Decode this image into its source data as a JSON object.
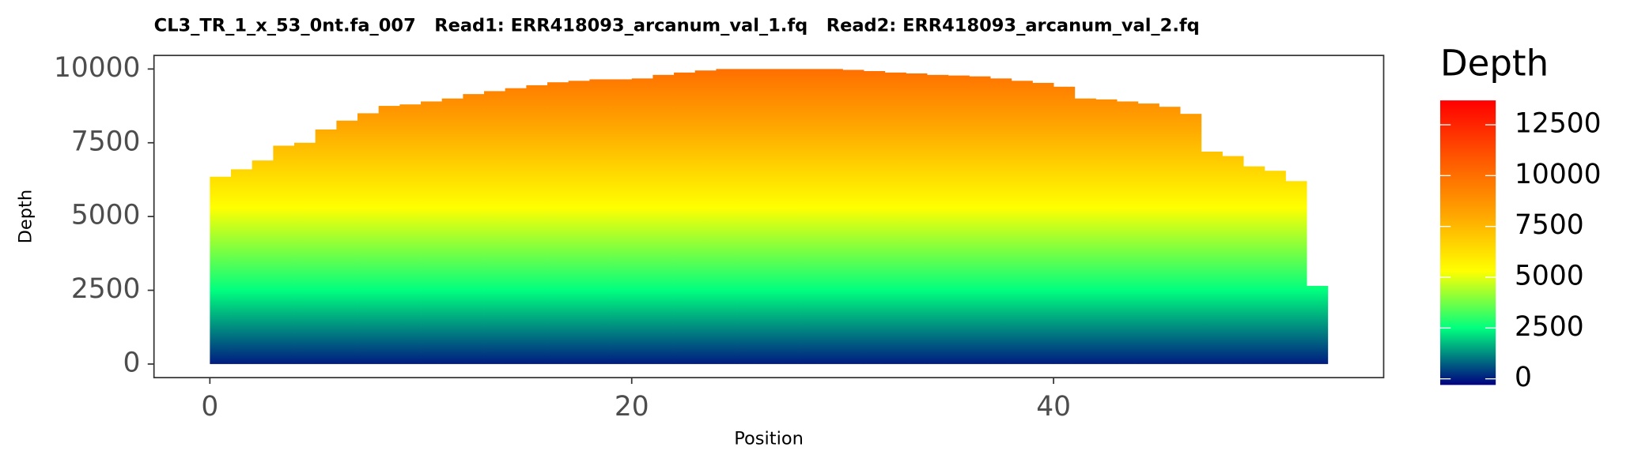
{
  "chart_data": {
    "type": "bar",
    "title": "CL3_TR_1_x_53_0nt.fa_007   Read1: ERR418093_arcanum_val_1.fq   Read2: ERR418093_arcanum_val_2.fq",
    "x_label": "Position",
    "y_label": "Depth",
    "x": [
      0,
      1,
      2,
      3,
      4,
      5,
      6,
      7,
      8,
      9,
      10,
      11,
      12,
      13,
      14,
      15,
      16,
      17,
      18,
      19,
      20,
      21,
      22,
      23,
      24,
      25,
      26,
      27,
      28,
      29,
      30,
      31,
      32,
      33,
      34,
      35,
      36,
      37,
      38,
      39,
      40,
      41,
      42,
      43,
      44,
      45,
      46,
      47,
      48,
      49,
      50,
      51,
      52
    ],
    "values": [
      6350,
      6600,
      6900,
      7400,
      7500,
      7950,
      8250,
      8500,
      8750,
      8800,
      8900,
      9000,
      9150,
      9250,
      9350,
      9450,
      9550,
      9600,
      9650,
      9650,
      9680,
      9800,
      9880,
      9950,
      10000,
      10000,
      10000,
      10000,
      10000,
      10000,
      9970,
      9930,
      9880,
      9850,
      9800,
      9780,
      9750,
      9680,
      9600,
      9530,
      9400,
      9000,
      8970,
      8900,
      8830,
      8720,
      8480,
      7200,
      7050,
      6700,
      6550,
      6200,
      2650
    ],
    "xlim": [
      -2.65,
      55.65
    ],
    "xticks": [
      0,
      20,
      40
    ],
    "ylim": [
      -460,
      10460
    ],
    "yticks": [
      0,
      2500,
      5000,
      7500,
      10000
    ],
    "grid": false,
    "colorbar": {
      "title": "Depth",
      "lim": [
        -300,
        13700
      ],
      "ticks": [
        0,
        2500,
        5000,
        7500,
        10000,
        12500
      ],
      "colors": [
        "#000080",
        "#00ff7f",
        "#ffff00",
        "#ffa500",
        "#ff5500",
        "#ff0000"
      ]
    }
  }
}
